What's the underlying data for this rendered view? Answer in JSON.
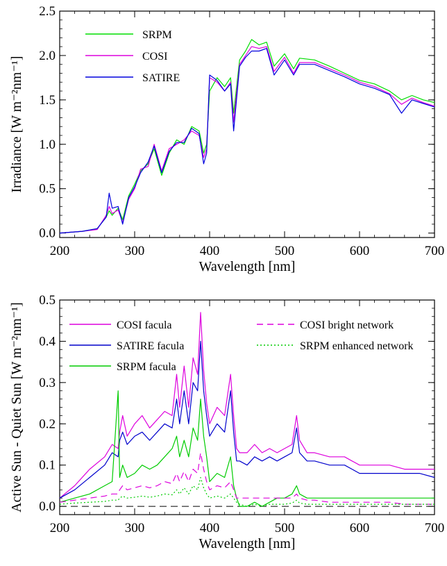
{
  "chart_data": [
    {
      "type": "line",
      "xlabel": "Wavelength [nm]",
      "ylabel": "Irradiance [W m⁻²nm⁻¹]",
      "xlim": [
        200,
        700
      ],
      "ylim": [
        -0.05,
        2.5
      ],
      "xticks": [
        "200",
        "300",
        "400",
        "500",
        "600",
        "700"
      ],
      "yticks": [
        "0.0",
        "0.5",
        "1.0",
        "1.5",
        "2.0",
        "2.5"
      ],
      "legend": "top-left",
      "x": [
        200,
        230,
        250,
        262,
        266,
        270,
        278,
        284,
        292,
        300,
        308,
        318,
        326,
        336,
        346,
        356,
        366,
        376,
        386,
        392,
        396,
        400,
        410,
        420,
        428,
        432,
        440,
        448,
        456,
        466,
        476,
        486,
        500,
        512,
        520,
        540,
        560,
        580,
        600,
        620,
        640,
        656,
        670,
        685,
        700
      ],
      "series": [
        {
          "name": "SRPM",
          "color": "#00dd00",
          "values": [
            0.0,
            0.02,
            0.05,
            0.18,
            0.25,
            0.2,
            0.28,
            0.15,
            0.42,
            0.55,
            0.7,
            0.78,
            0.95,
            0.65,
            0.9,
            1.05,
            1.0,
            1.2,
            1.15,
            0.9,
            1.0,
            1.6,
            1.75,
            1.65,
            1.75,
            1.35,
            1.95,
            2.05,
            2.18,
            2.12,
            2.15,
            1.88,
            2.02,
            1.85,
            1.97,
            1.95,
            1.88,
            1.8,
            1.72,
            1.68,
            1.6,
            1.5,
            1.55,
            1.5,
            1.47
          ]
        },
        {
          "name": "COSI",
          "color": "#dd00dd",
          "values": [
            0.0,
            0.02,
            0.04,
            0.2,
            0.3,
            0.22,
            0.26,
            0.12,
            0.38,
            0.5,
            0.72,
            0.75,
            1.0,
            0.7,
            0.95,
            1.0,
            1.05,
            1.15,
            1.1,
            0.85,
            0.95,
            1.75,
            1.7,
            1.6,
            1.7,
            1.25,
            1.9,
            2.0,
            2.1,
            2.08,
            2.1,
            1.82,
            1.98,
            1.8,
            1.92,
            1.92,
            1.85,
            1.78,
            1.7,
            1.65,
            1.57,
            1.45,
            1.52,
            1.47,
            1.43
          ]
        },
        {
          "name": "SATIRE",
          "color": "#0000dd",
          "values": [
            0.0,
            0.02,
            0.05,
            0.18,
            0.45,
            0.28,
            0.3,
            0.1,
            0.4,
            0.52,
            0.68,
            0.8,
            0.98,
            0.68,
            0.92,
            1.02,
            1.02,
            1.18,
            1.12,
            0.78,
            0.9,
            1.78,
            1.72,
            1.6,
            1.68,
            1.15,
            1.88,
            1.98,
            2.05,
            2.05,
            2.08,
            1.78,
            1.95,
            1.78,
            1.9,
            1.9,
            1.83,
            1.76,
            1.68,
            1.63,
            1.56,
            1.35,
            1.5,
            1.46,
            1.42
          ]
        }
      ]
    },
    {
      "type": "line",
      "xlabel": "Wavelength [nm]",
      "ylabel": "Active Sun - Quiet Sun [W m⁻²nm⁻¹]",
      "xlim": [
        200,
        700
      ],
      "ylim": [
        -0.02,
        0.5
      ],
      "xticks": [
        "200",
        "300",
        "400",
        "500",
        "600",
        "700"
      ],
      "yticks": [
        "0.0",
        "0.1",
        "0.2",
        "0.3",
        "0.4",
        "0.5"
      ],
      "legend": "top",
      "reference_line": 0.0,
      "x": [
        200,
        220,
        240,
        260,
        270,
        278,
        280,
        284,
        290,
        300,
        310,
        320,
        330,
        340,
        350,
        356,
        360,
        366,
        372,
        378,
        384,
        388,
        392,
        396,
        400,
        410,
        420,
        428,
        432,
        436,
        440,
        450,
        460,
        470,
        480,
        490,
        500,
        510,
        516,
        520,
        530,
        540,
        560,
        580,
        590,
        600,
        620,
        640,
        660,
        680,
        700
      ],
      "series": [
        {
          "name": "COSI facula",
          "color": "#dd00dd",
          "dash": "solid",
          "values": [
            0.02,
            0.05,
            0.09,
            0.12,
            0.15,
            0.14,
            0.18,
            0.22,
            0.17,
            0.2,
            0.22,
            0.19,
            0.21,
            0.23,
            0.22,
            0.32,
            0.24,
            0.34,
            0.24,
            0.36,
            0.32,
            0.47,
            0.33,
            0.25,
            0.2,
            0.24,
            0.22,
            0.32,
            0.22,
            0.14,
            0.13,
            0.13,
            0.15,
            0.13,
            0.14,
            0.13,
            0.14,
            0.15,
            0.22,
            0.16,
            0.13,
            0.13,
            0.12,
            0.12,
            0.11,
            0.1,
            0.1,
            0.1,
            0.09,
            0.09,
            0.09
          ]
        },
        {
          "name": "SATIRE facula",
          "color": "#0000cc",
          "dash": "solid",
          "values": [
            0.02,
            0.04,
            0.07,
            0.1,
            0.13,
            0.12,
            0.16,
            0.18,
            0.15,
            0.17,
            0.18,
            0.16,
            0.18,
            0.2,
            0.19,
            0.26,
            0.2,
            0.28,
            0.2,
            0.3,
            0.28,
            0.4,
            0.28,
            0.22,
            0.17,
            0.2,
            0.18,
            0.28,
            0.18,
            0.11,
            0.11,
            0.1,
            0.12,
            0.11,
            0.12,
            0.11,
            0.12,
            0.13,
            0.19,
            0.13,
            0.11,
            0.11,
            0.1,
            0.1,
            0.09,
            0.08,
            0.08,
            0.08,
            0.08,
            0.08,
            0.07
          ]
        },
        {
          "name": "SRPM facula",
          "color": "#00cc00",
          "dash": "solid",
          "values": [
            0.01,
            0.02,
            0.03,
            0.05,
            0.06,
            0.28,
            0.07,
            0.1,
            0.07,
            0.08,
            0.1,
            0.09,
            0.1,
            0.12,
            0.14,
            0.17,
            0.12,
            0.16,
            0.12,
            0.19,
            0.16,
            0.26,
            0.17,
            0.12,
            0.06,
            0.08,
            0.07,
            0.12,
            0.05,
            0.02,
            0.0,
            0.0,
            0.01,
            0.0,
            0.01,
            0.02,
            0.02,
            0.03,
            0.05,
            0.03,
            0.02,
            0.02,
            0.02,
            0.02,
            0.02,
            0.02,
            0.02,
            0.02,
            0.02,
            0.02,
            0.02
          ]
        },
        {
          "name": "COSI bright network",
          "color": "#dd00dd",
          "dash": "dashed",
          "values": [
            0.01,
            0.015,
            0.02,
            0.025,
            0.03,
            0.03,
            0.04,
            0.05,
            0.04,
            0.045,
            0.05,
            0.045,
            0.05,
            0.06,
            0.055,
            0.08,
            0.06,
            0.085,
            0.06,
            0.09,
            0.08,
            0.13,
            0.09,
            0.06,
            0.04,
            0.05,
            0.045,
            0.06,
            0.04,
            0.02,
            0.02,
            0.02,
            0.02,
            0.02,
            0.02,
            0.02,
            0.02,
            0.02,
            0.03,
            0.02,
            0.015,
            0.015,
            0.01,
            0.01,
            0.01,
            0.01,
            0.01,
            0.01,
            0.005,
            0.005,
            0.005
          ]
        },
        {
          "name": "SRPM enhanced network",
          "color": "#00cc00",
          "dash": "dotted",
          "values": [
            0.005,
            0.008,
            0.01,
            0.012,
            0.015,
            0.015,
            0.02,
            0.025,
            0.02,
            0.022,
            0.025,
            0.022,
            0.025,
            0.03,
            0.028,
            0.04,
            0.03,
            0.045,
            0.03,
            0.05,
            0.04,
            0.07,
            0.045,
            0.03,
            0.02,
            0.025,
            0.02,
            0.03,
            0.02,
            0.01,
            0.005,
            0.0,
            0.005,
            0.0,
            0.005,
            0.005,
            0.005,
            0.008,
            0.015,
            0.008,
            0.005,
            0.005,
            0.005,
            0.005,
            0.005,
            0.005,
            0.005,
            0.005,
            0.005,
            0.005,
            0.005
          ]
        }
      ]
    }
  ]
}
